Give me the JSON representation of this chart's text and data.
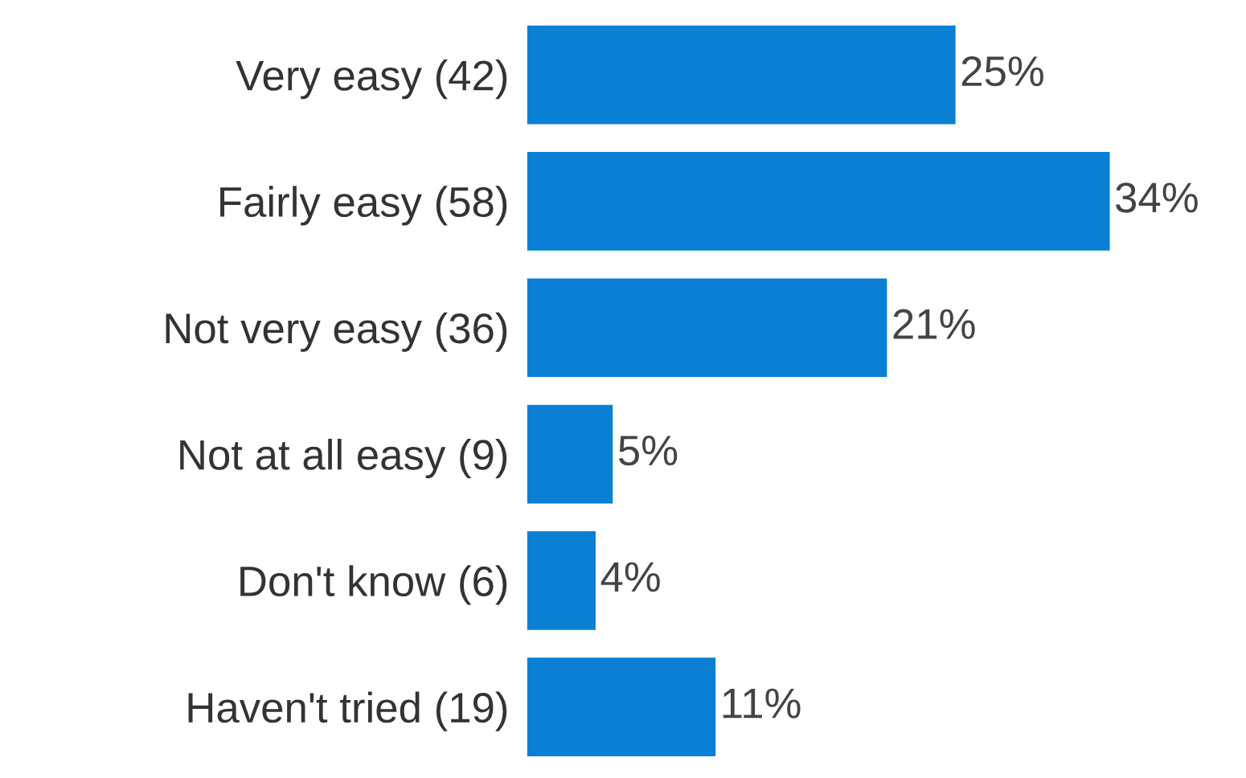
{
  "chart_data": {
    "type": "bar",
    "orientation": "horizontal",
    "categories": [
      "Very easy (42)",
      "Fairly easy (58)",
      "Not very easy (36)",
      "Not at all easy (9)",
      "Don't know (6)",
      "Haven't tried (19)"
    ],
    "values": [
      25,
      34,
      21,
      5,
      4,
      11
    ],
    "value_labels": [
      "25%",
      "34%",
      "21%",
      "5%",
      "4%",
      "11%"
    ],
    "color": "#0a7fd4",
    "grid": false,
    "legend": false
  }
}
